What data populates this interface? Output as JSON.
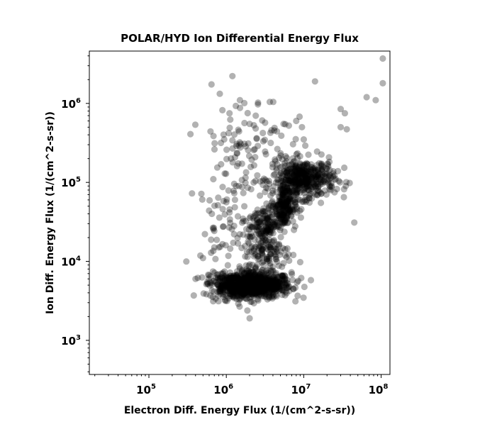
{
  "chart_data": {
    "type": "scatter",
    "title": "POLAR/HYD  Ion Differential Energy Flux",
    "xlabel": "Electron Diff. Energy Flux (1/(cm^2-s-sr))",
    "ylabel": "Ion Diff. Energy Flux (1/(cm^2-s-sr))",
    "xscale": "log",
    "yscale": "log",
    "xlim": [
      17000,
      130000000
    ],
    "ylim": [
      370,
      4600000
    ],
    "xticks": [
      {
        "value": 100000,
        "base": "10",
        "exp": "5"
      },
      {
        "value": 1000000,
        "base": "10",
        "exp": "6"
      },
      {
        "value": 10000000,
        "base": "10",
        "exp": "7"
      },
      {
        "value": 100000000,
        "base": "10",
        "exp": "8"
      }
    ],
    "yticks": [
      {
        "value": 1000,
        "base": "10",
        "exp": "3"
      },
      {
        "value": 10000,
        "base": "10",
        "exp": "4"
      },
      {
        "value": 100000,
        "base": "10",
        "exp": "5"
      },
      {
        "value": 1000000,
        "base": "10",
        "exp": "6"
      }
    ],
    "grid": false,
    "legend": "none",
    "marker_color": "#000000",
    "clusters": [
      {
        "x_center": 2500000,
        "y_center": 5000,
        "x_spread_dex": 0.22,
        "y_spread_dex": 0.08,
        "count": 700
      },
      {
        "x_center": 1200000,
        "y_center": 5000,
        "x_spread_dex": 0.15,
        "y_spread_dex": 0.09,
        "count": 250
      },
      {
        "x_center": 10000000,
        "y_center": 110000,
        "x_spread_dex": 0.2,
        "y_spread_dex": 0.12,
        "count": 450
      },
      {
        "x_center": 5500000,
        "y_center": 50000,
        "x_spread_dex": 0.08,
        "y_spread_dex": 0.14,
        "count": 220
      },
      {
        "x_center": 3000000,
        "y_center": 30000,
        "x_spread_dex": 0.1,
        "y_spread_dex": 0.12,
        "count": 120
      },
      {
        "x_center": 3500000,
        "y_center": 13000,
        "x_spread_dex": 0.15,
        "y_spread_dex": 0.15,
        "count": 120
      },
      {
        "x_center": 1700000,
        "y_center": 300000,
        "x_spread_dex": 0.3,
        "y_spread_dex": 0.35,
        "count": 110
      },
      {
        "x_center": 1100000,
        "y_center": 25000,
        "x_spread_dex": 0.2,
        "y_spread_dex": 0.3,
        "count": 70
      }
    ],
    "points": [
      {
        "x": 105000000,
        "y": 3700000
      },
      {
        "x": 105000000,
        "y": 1800000
      },
      {
        "x": 14000000,
        "y": 1900000
      },
      {
        "x": 65000000,
        "y": 1200000
      },
      {
        "x": 85000000,
        "y": 1100000
      },
      {
        "x": 1500000,
        "y": 1100000
      },
      {
        "x": 30000000,
        "y": 850000
      },
      {
        "x": 34000000,
        "y": 750000
      },
      {
        "x": 30000000,
        "y": 500000
      },
      {
        "x": 36000000,
        "y": 470000
      },
      {
        "x": 33000000,
        "y": 65000
      },
      {
        "x": 45000000,
        "y": 31000
      },
      {
        "x": 680000,
        "y": 110000
      },
      {
        "x": 650000,
        "y": 40000
      },
      {
        "x": 380000,
        "y": 3700
      },
      {
        "x": 400000,
        "y": 6000
      },
      {
        "x": 500000,
        "y": 11000
      },
      {
        "x": 700000,
        "y": 15000
      },
      {
        "x": 2000000,
        "y": 1900
      },
      {
        "x": 3000000,
        "y": 10000
      },
      {
        "x": 4000000,
        "y": 8500
      },
      {
        "x": 9500000,
        "y": 500000
      },
      {
        "x": 10000000,
        "y": 350000
      },
      {
        "x": 8000000,
        "y": 600000
      },
      {
        "x": 2400000,
        "y": 700000
      },
      {
        "x": 2000000,
        "y": 550000
      },
      {
        "x": 1100000,
        "y": 750000
      },
      {
        "x": 5500000,
        "y": 550000
      }
    ]
  }
}
